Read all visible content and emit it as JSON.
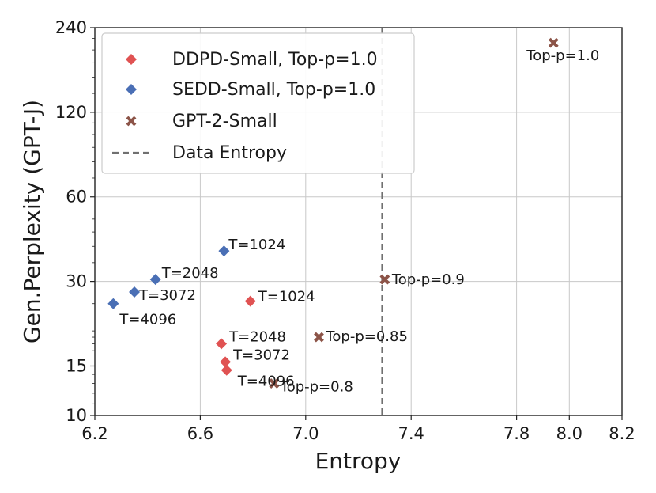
{
  "chart_data": {
    "type": "scatter",
    "xlabel": "Entropy",
    "ylabel": "Gen.Perplexity (GPT-J)",
    "xlim": [
      6.2,
      8.2
    ],
    "ylim": [
      10,
      240
    ],
    "yscale": "log",
    "xticks": [
      "6.2",
      "6.6",
      "7.0",
      "7.4",
      "7.8",
      "8.0",
      "8.2"
    ],
    "yticks": [
      "10",
      "15",
      "30",
      "60",
      "120",
      "240"
    ],
    "grid": true,
    "legend_position": "top-left",
    "series": [
      {
        "name": "DDPD-Small, Top-p=1.0",
        "color": "#e05252",
        "marker": "diamond",
        "points": [
          {
            "x": 6.79,
            "y": 25.5,
            "label": "T=1024"
          },
          {
            "x": 6.68,
            "y": 18.0,
            "label": "T=2048"
          },
          {
            "x": 6.695,
            "y": 15.5,
            "label": "T=3072"
          },
          {
            "x": 6.7,
            "y": 14.5,
            "label": "T=4096"
          }
        ]
      },
      {
        "name": "SEDD-Small, Top-p=1.0",
        "color": "#4a6fb5",
        "marker": "diamond",
        "points": [
          {
            "x": 6.69,
            "y": 38.5,
            "label": "T=1024"
          },
          {
            "x": 6.43,
            "y": 30.5,
            "label": "T=2048"
          },
          {
            "x": 6.35,
            "y": 27.5,
            "label": "T=3072"
          },
          {
            "x": 6.27,
            "y": 25.0,
            "label": "T=4096"
          }
        ]
      },
      {
        "name": "GPT-2-Small",
        "color": "#8c5448",
        "marker": "x",
        "points": [
          {
            "x": 7.94,
            "y": 212,
            "label": "Top-p=1.0"
          },
          {
            "x": 7.3,
            "y": 30.5,
            "label": "Top-p=0.9"
          },
          {
            "x": 7.05,
            "y": 19.0,
            "label": "Top-p=0.85"
          },
          {
            "x": 6.88,
            "y": 13.0,
            "label": "Top-p=0.8"
          }
        ]
      }
    ],
    "reference_line": {
      "name": "Data Entropy",
      "x": 7.29,
      "color": "#707070",
      "style": "dashed"
    }
  }
}
